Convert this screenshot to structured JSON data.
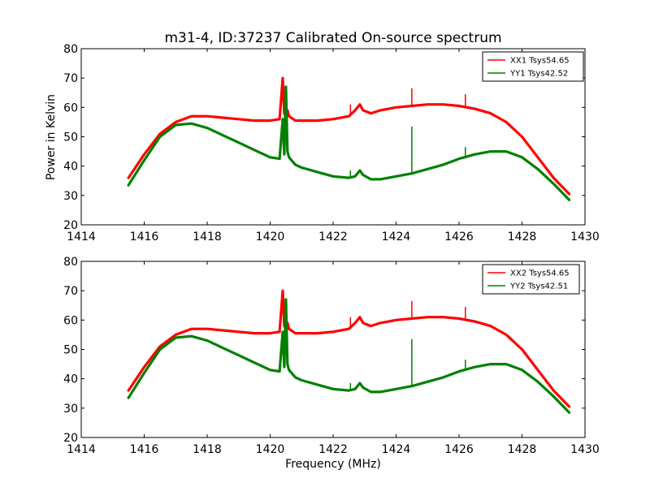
{
  "chart_data": [
    {
      "type": "line",
      "title": "m31-4, ID:37237 Calibrated On-source spectrum",
      "xlabel": "",
      "ylabel": "Power in Kelvin",
      "xlim": [
        1414,
        1430
      ],
      "ylim": [
        20,
        80
      ],
      "xticks": [
        "1414",
        "1416",
        "1418",
        "1420",
        "1422",
        "1424",
        "1426",
        "1428",
        "1430"
      ],
      "yticks": [
        "20",
        "30",
        "40",
        "50",
        "60",
        "70",
        "80"
      ],
      "legend_position": "top-right",
      "series": [
        {
          "name": "XX1 Tsys54.65",
          "color": "#ff0000",
          "x": [
            1415.5,
            1416.0,
            1416.5,
            1417.0,
            1417.5,
            1418.0,
            1418.5,
            1419.0,
            1419.5,
            1420.0,
            1420.3,
            1420.4,
            1420.45,
            1420.5,
            1420.55,
            1420.6,
            1420.8,
            1421.0,
            1421.5,
            1422.0,
            1422.5,
            1422.7,
            1422.85,
            1422.95,
            1423.2,
            1423.5,
            1424.0,
            1424.5,
            1425.0,
            1425.5,
            1426.0,
            1426.5,
            1427.0,
            1427.5,
            1428.0,
            1428.5,
            1429.0,
            1429.5
          ],
          "y": [
            36,
            44,
            51,
            55,
            57,
            57,
            56.5,
            56,
            55.5,
            55.5,
            56,
            70,
            58,
            57,
            59,
            57,
            55.5,
            55.5,
            55.5,
            56,
            57,
            59,
            61,
            59,
            58,
            59,
            60,
            60.5,
            61,
            61,
            60.5,
            59.5,
            58,
            55,
            50,
            43,
            36,
            30.5
          ]
        },
        {
          "name": "YY1 Tsys42.52",
          "color": "#008000",
          "x": [
            1415.5,
            1416.0,
            1416.5,
            1417.0,
            1417.5,
            1418.0,
            1418.5,
            1419.0,
            1419.5,
            1420.0,
            1420.3,
            1420.4,
            1420.45,
            1420.5,
            1420.55,
            1420.6,
            1420.8,
            1421.0,
            1421.5,
            1422.0,
            1422.5,
            1422.7,
            1422.85,
            1422.95,
            1423.2,
            1423.5,
            1424.0,
            1424.5,
            1425.0,
            1425.5,
            1426.0,
            1426.5,
            1427.0,
            1427.5,
            1428.0,
            1428.5,
            1429.0,
            1429.5
          ],
          "y": [
            33.5,
            42,
            50,
            54,
            54.5,
            53,
            50.5,
            48,
            45.5,
            43,
            42.5,
            56,
            44,
            67,
            45,
            43,
            40.5,
            39.5,
            38,
            36.5,
            36,
            36.5,
            38.5,
            37,
            35.5,
            35.5,
            36.5,
            37.5,
            39,
            40.5,
            42.5,
            44,
            45,
            45,
            43,
            39,
            34,
            28.5
          ]
        }
      ],
      "spikes": [
        {
          "series": 0,
          "x": 1422.55,
          "y": 61
        },
        {
          "series": 0,
          "x": 1424.5,
          "y": 66.5
        },
        {
          "series": 0,
          "x": 1426.2,
          "y": 64.5
        },
        {
          "series": 1,
          "x": 1422.55,
          "y": 38.5
        },
        {
          "series": 1,
          "x": 1424.5,
          "y": 53.5
        },
        {
          "series": 1,
          "x": 1426.2,
          "y": 46.5
        }
      ]
    },
    {
      "type": "line",
      "title": "",
      "xlabel": "Frequency (MHz)",
      "ylabel": "",
      "xlim": [
        1414,
        1430
      ],
      "ylim": [
        20,
        80
      ],
      "xticks": [
        "1414",
        "1416",
        "1418",
        "1420",
        "1422",
        "1424",
        "1426",
        "1428",
        "1430"
      ],
      "yticks": [
        "20",
        "30",
        "40",
        "50",
        "60",
        "70",
        "80"
      ],
      "legend_position": "top-right",
      "series": [
        {
          "name": "XX2 Tsys54.65",
          "color": "#ff0000",
          "x": [
            1415.5,
            1416.0,
            1416.5,
            1417.0,
            1417.5,
            1418.0,
            1418.5,
            1419.0,
            1419.5,
            1420.0,
            1420.3,
            1420.4,
            1420.45,
            1420.5,
            1420.55,
            1420.6,
            1420.8,
            1421.0,
            1421.5,
            1422.0,
            1422.5,
            1422.7,
            1422.85,
            1422.95,
            1423.2,
            1423.5,
            1424.0,
            1424.5,
            1425.0,
            1425.5,
            1426.0,
            1426.5,
            1427.0,
            1427.5,
            1428.0,
            1428.5,
            1429.0,
            1429.5
          ],
          "y": [
            36,
            44,
            51,
            55,
            57,
            57,
            56.5,
            56,
            55.5,
            55.5,
            56,
            70,
            58,
            57,
            59,
            57,
            55.5,
            55.5,
            55.5,
            56,
            57,
            59,
            61,
            59,
            58,
            59,
            60,
            60.5,
            61,
            61,
            60.5,
            59.5,
            58,
            55,
            50,
            43,
            36,
            30.5
          ]
        },
        {
          "name": "YY2 Tsys42.51",
          "color": "#008000",
          "x": [
            1415.5,
            1416.0,
            1416.5,
            1417.0,
            1417.5,
            1418.0,
            1418.5,
            1419.0,
            1419.5,
            1420.0,
            1420.3,
            1420.4,
            1420.45,
            1420.5,
            1420.55,
            1420.6,
            1420.8,
            1421.0,
            1421.5,
            1422.0,
            1422.5,
            1422.7,
            1422.85,
            1422.95,
            1423.2,
            1423.5,
            1424.0,
            1424.5,
            1425.0,
            1425.5,
            1426.0,
            1426.5,
            1427.0,
            1427.5,
            1428.0,
            1428.5,
            1429.0,
            1429.5
          ],
          "y": [
            33.5,
            42,
            50,
            54,
            54.5,
            53,
            50.5,
            48,
            45.5,
            43,
            42.5,
            56,
            44,
            67,
            45,
            43,
            40.5,
            39.5,
            38,
            36.5,
            36,
            36.5,
            38.5,
            37,
            35.5,
            35.5,
            36.5,
            37.5,
            39,
            40.5,
            42.5,
            44,
            45,
            45,
            43,
            39,
            34,
            28.5
          ]
        }
      ],
      "spikes": [
        {
          "series": 0,
          "x": 1422.55,
          "y": 61
        },
        {
          "series": 0,
          "x": 1424.5,
          "y": 66.5
        },
        {
          "series": 0,
          "x": 1426.2,
          "y": 64.5
        },
        {
          "series": 1,
          "x": 1422.55,
          "y": 38.5
        },
        {
          "series": 1,
          "x": 1424.5,
          "y": 53.5
        },
        {
          "series": 1,
          "x": 1426.2,
          "y": 46.5
        }
      ]
    }
  ]
}
